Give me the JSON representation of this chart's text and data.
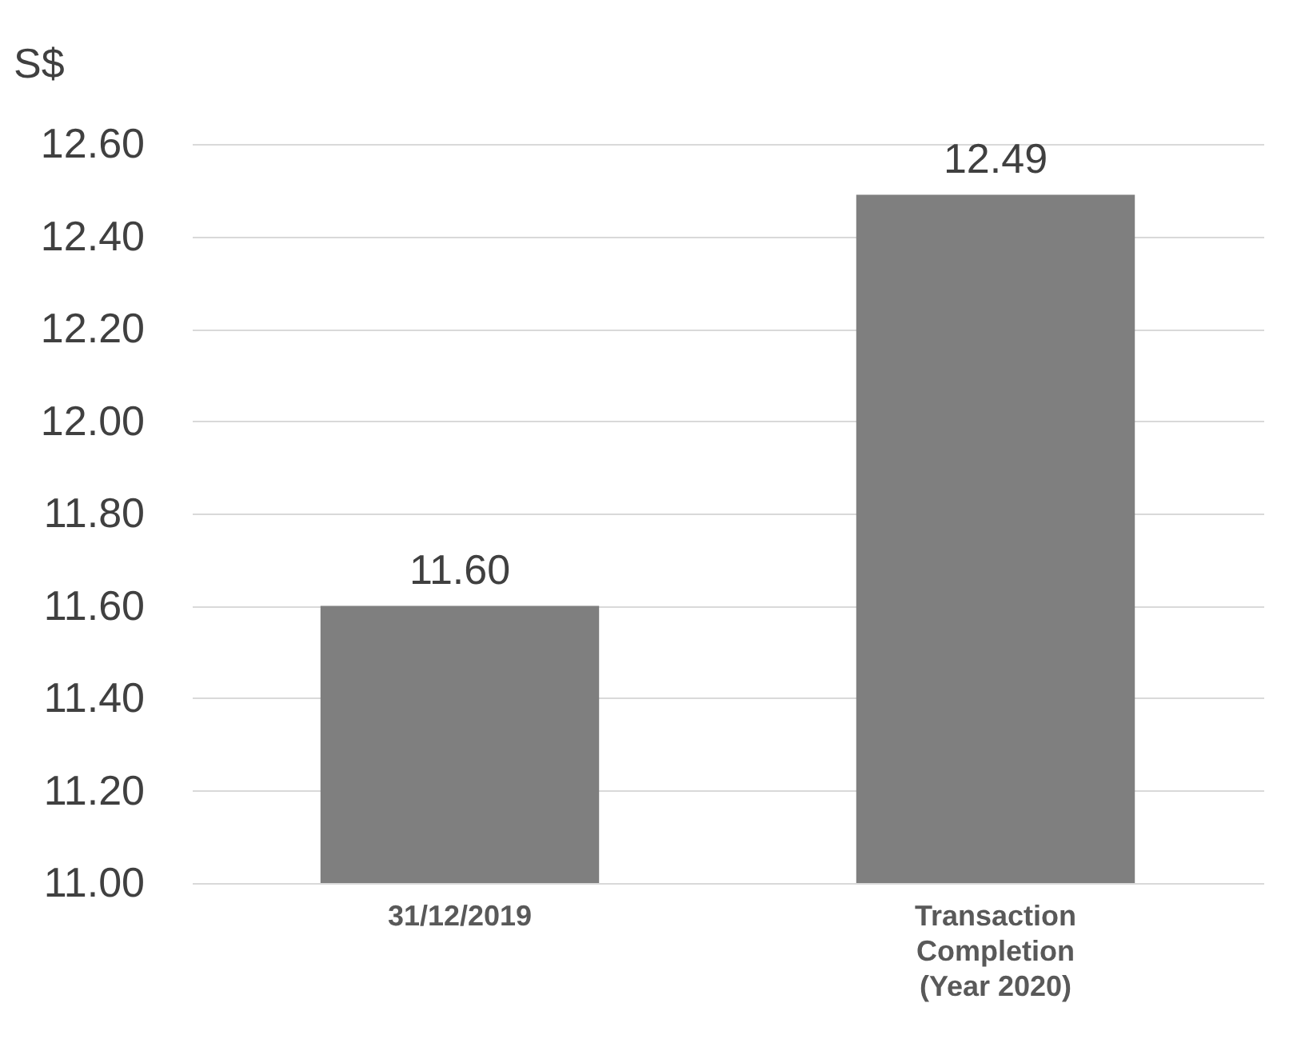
{
  "chart_data": {
    "type": "bar",
    "ylabel": "S$",
    "categories": [
      "31/12/2019",
      "Transaction Completion (Year 2020)"
    ],
    "values": [
      11.6,
      12.49
    ],
    "color": "#7f7f7f",
    "ylim": [
      11,
      12.6
    ],
    "yticks": [
      {
        "value": 11,
        "label": "11.00"
      },
      {
        "value": 11.2,
        "label": "11.20"
      },
      {
        "value": 11.4,
        "label": "11.40"
      },
      {
        "value": 11.6,
        "label": "11.60"
      },
      {
        "value": 11.8,
        "label": "11.80"
      },
      {
        "value": 12,
        "label": "12.00"
      },
      {
        "value": 12.2,
        "label": "12.20"
      },
      {
        "value": 12.4,
        "label": "12.40"
      },
      {
        "value": 12.6,
        "label": "12.60"
      }
    ],
    "grid": "y",
    "value_labels": [
      "11.60",
      "12.49"
    ]
  }
}
